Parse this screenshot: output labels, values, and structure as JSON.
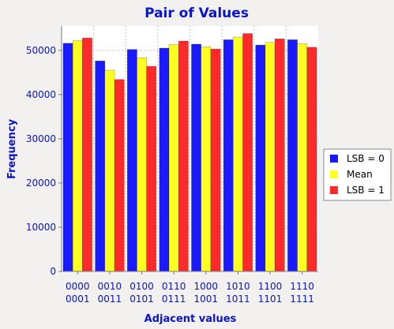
{
  "chart_data": {
    "type": "bar",
    "title": "Pair of Values",
    "xlabel": "Adjacent values",
    "ylabel": "Frequency",
    "ylim": [
      0,
      55500
    ],
    "yticks": [
      0,
      10000,
      20000,
      30000,
      40000,
      50000
    ],
    "grid": true,
    "legend_position": "right",
    "categories": [
      [
        "0000",
        "0001"
      ],
      [
        "0010",
        "0011"
      ],
      [
        "0100",
        "0101"
      ],
      [
        "0110",
        "0111"
      ],
      [
        "1000",
        "1001"
      ],
      [
        "1010",
        "1011"
      ],
      [
        "1100",
        "1101"
      ],
      [
        "1110",
        "1111"
      ]
    ],
    "series": [
      {
        "name": "LSB = 0",
        "color": "#1a1aff",
        "values": [
          51600,
          47600,
          50200,
          50500,
          51400,
          52400,
          51200,
          52400
        ]
      },
      {
        "name": "Mean",
        "color": "#ffff22",
        "values": [
          52200,
          45500,
          48300,
          51300,
          50800,
          53000,
          51800,
          51500
        ]
      },
      {
        "name": "LSB = 1",
        "color": "#ff2a2a",
        "values": [
          52800,
          43400,
          46400,
          52100,
          50300,
          53800,
          52600,
          50700
        ]
      }
    ]
  }
}
